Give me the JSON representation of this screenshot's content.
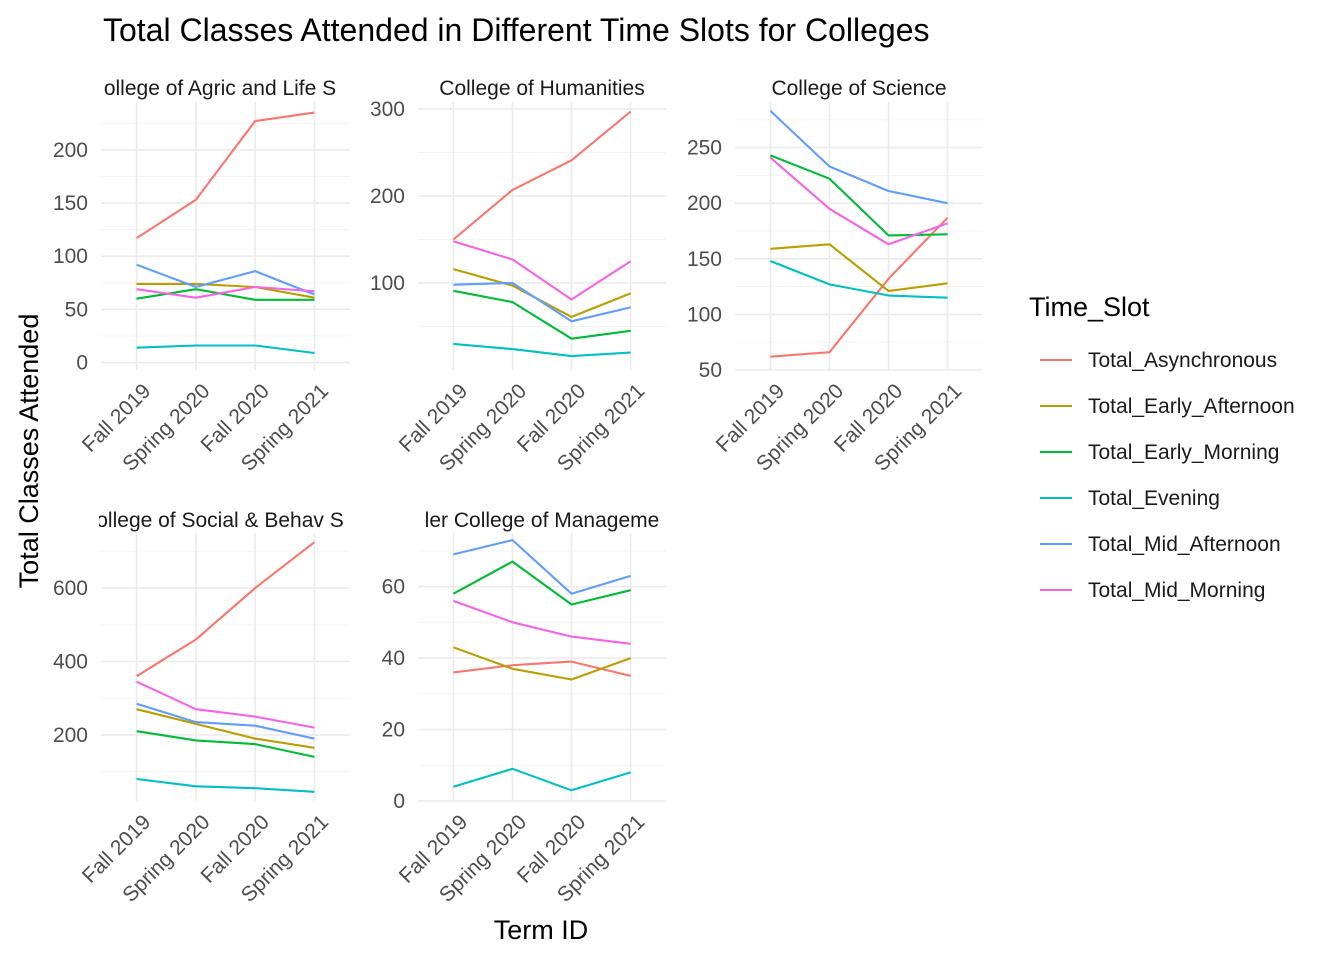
{
  "chart_data": {
    "type": "line",
    "title": "Total Classes Attended in Different Time Slots for Colleges",
    "xlabel": "Term ID",
    "ylabel": "Total Classes Attended",
    "categories": [
      "Fall 2019",
      "Spring 2020",
      "Fall 2020",
      "Spring 2021"
    ],
    "legend": {
      "title": "Time_Slot",
      "position": "right",
      "items": [
        {
          "name": "Total_Asynchronous",
          "color": "#F8766D"
        },
        {
          "name": "Total_Early_Afternoon",
          "color": "#B79F00"
        },
        {
          "name": "Total_Early_Morning",
          "color": "#00BA38"
        },
        {
          "name": "Total_Evening",
          "color": "#00BFC4"
        },
        {
          "name": "Total_Mid_Afternoon",
          "color": "#619CFF"
        },
        {
          "name": "Total_Mid_Morning",
          "color": "#F564E3"
        }
      ]
    },
    "grid": true,
    "facets": [
      {
        "title": "College of Agric and Life Sciences",
        "title_visible": "ollege of Agric and Life S",
        "ylim": [
          -7,
          245
        ],
        "yticks": [
          0,
          50,
          100,
          150,
          200
        ],
        "series": [
          {
            "name": "Total_Asynchronous",
            "values": [
              117,
              153,
              227,
              235
            ]
          },
          {
            "name": "Total_Early_Afternoon",
            "values": [
              74,
              74,
              71,
              61
            ]
          },
          {
            "name": "Total_Early_Morning",
            "values": [
              60,
              69,
              59,
              59
            ]
          },
          {
            "name": "Total_Evening",
            "values": [
              14,
              16,
              16,
              9
            ]
          },
          {
            "name": "Total_Mid_Afternoon",
            "values": [
              92,
              71,
              86,
              64
            ]
          },
          {
            "name": "Total_Mid_Morning",
            "values": [
              69,
              61,
              71,
              67
            ]
          }
        ]
      },
      {
        "title": "College of Humanities",
        "title_visible": "College of Humanities",
        "ylim": [
          0,
          308
        ],
        "yticks": [
          100,
          200,
          300
        ],
        "series": [
          {
            "name": "Total_Asynchronous",
            "values": [
              150,
              207,
              241,
              297
            ]
          },
          {
            "name": "Total_Early_Afternoon",
            "values": [
              116,
              97,
              61,
              88
            ]
          },
          {
            "name": "Total_Early_Morning",
            "values": [
              91,
              78,
              36,
              45
            ]
          },
          {
            "name": "Total_Evening",
            "values": [
              30,
              24,
              16,
              20
            ]
          },
          {
            "name": "Total_Mid_Afternoon",
            "values": [
              98,
              100,
              56,
              72
            ]
          },
          {
            "name": "Total_Mid_Morning",
            "values": [
              148,
              127,
              81,
              125
            ]
          }
        ]
      },
      {
        "title": "College of Science",
        "title_visible": "College of Science",
        "ylim": [
          50,
          291
        ],
        "yticks": [
          50,
          100,
          150,
          200,
          250
        ],
        "series": [
          {
            "name": "Total_Asynchronous",
            "values": [
              62,
              66,
              132,
              187
            ]
          },
          {
            "name": "Total_Early_Afternoon",
            "values": [
              159,
              163,
              121,
              128
            ]
          },
          {
            "name": "Total_Early_Morning",
            "values": [
              243,
              222,
              171,
              172
            ]
          },
          {
            "name": "Total_Evening",
            "values": [
              148,
              127,
              117,
              115
            ]
          },
          {
            "name": "Total_Mid_Afternoon",
            "values": [
              283,
              233,
              211,
              200
            ]
          },
          {
            "name": "Total_Mid_Morning",
            "values": [
              241,
              195,
              163,
              182
            ]
          }
        ]
      },
      {
        "title": "College of Social & Behav Sciences",
        "title_visible": "ollege of Social & Behav S",
        "ylim": [
          20,
          750
        ],
        "yticks": [
          200,
          400,
          600
        ],
        "series": [
          {
            "name": "Total_Asynchronous",
            "values": [
              360,
              460,
              600,
              725
            ]
          },
          {
            "name": "Total_Early_Afternoon",
            "values": [
              270,
              230,
              190,
              165
            ]
          },
          {
            "name": "Total_Early_Morning",
            "values": [
              210,
              185,
              175,
              140
            ]
          },
          {
            "name": "Total_Evening",
            "values": [
              80,
              60,
              55,
              45
            ]
          },
          {
            "name": "Total_Mid_Afternoon",
            "values": [
              285,
              235,
              225,
              190
            ]
          },
          {
            "name": "Total_Mid_Morning",
            "values": [
              345,
              270,
              250,
              220
            ]
          }
        ]
      },
      {
        "title": "Eller College of Management",
        "title_visible": "ler College of Manageme",
        "ylim": [
          0,
          75
        ],
        "yticks": [
          0,
          20,
          40,
          60
        ],
        "series": [
          {
            "name": "Total_Asynchronous",
            "values": [
              36,
              38,
              39,
              35
            ]
          },
          {
            "name": "Total_Early_Afternoon",
            "values": [
              43,
              37,
              34,
              40
            ]
          },
          {
            "name": "Total_Early_Morning",
            "values": [
              58,
              67,
              55,
              59
            ]
          },
          {
            "name": "Total_Evening",
            "values": [
              4,
              9,
              3,
              8
            ]
          },
          {
            "name": "Total_Mid_Afternoon",
            "values": [
              69,
              73,
              58,
              63
            ]
          },
          {
            "name": "Total_Mid_Morning",
            "values": [
              56,
              50,
              46,
              44
            ]
          }
        ]
      }
    ]
  }
}
